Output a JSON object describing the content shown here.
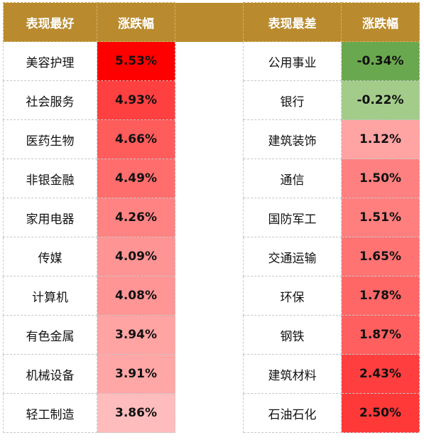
{
  "headers": {
    "best": "表现最好",
    "best_change": "涨跌幅",
    "worst": "表现最差",
    "worst_change": "涨跌幅"
  },
  "best_rows": [
    {
      "name": "美容护理",
      "value": "5.53%",
      "color": "#ff0000"
    },
    {
      "name": "社会服务",
      "value": "4.93%",
      "color": "#ff4040"
    },
    {
      "name": "医药生物",
      "value": "4.66%",
      "color": "#ff5c5c"
    },
    {
      "name": "非银金融",
      "value": "4.49%",
      "color": "#ff6d6d"
    },
    {
      "name": "家用电器",
      "value": "4.26%",
      "color": "#ff8383"
    },
    {
      "name": "传媒",
      "value": "4.09%",
      "color": "#ff9494"
    },
    {
      "name": "计算机",
      "value": "4.08%",
      "color": "#ff9595"
    },
    {
      "name": "有色金属",
      "value": "3.94%",
      "color": "#ffa3a3"
    },
    {
      "name": "机械设备",
      "value": "3.91%",
      "color": "#ffa6a6"
    },
    {
      "name": "轻工制造",
      "value": "3.86%",
      "color": "#ffbcbc"
    }
  ],
  "worst_rows": [
    {
      "name": "公用事业",
      "value": "-0.34%",
      "color": "#6aa84f"
    },
    {
      "name": "银行",
      "value": "-0.22%",
      "color": "#a3cc8a"
    },
    {
      "name": "建筑装饰",
      "value": "1.12%",
      "color": "#ffa3a3"
    },
    {
      "name": "通信",
      "value": "1.50%",
      "color": "#ff8080"
    },
    {
      "name": "国防军工",
      "value": "1.51%",
      "color": "#ff7f7f"
    },
    {
      "name": "交通运输",
      "value": "1.65%",
      "color": "#ff7373"
    },
    {
      "name": "环保",
      "value": "1.78%",
      "color": "#ff6767"
    },
    {
      "name": "钢铁",
      "value": "1.87%",
      "color": "#ff5f5f"
    },
    {
      "name": "建筑材料",
      "value": "2.43%",
      "color": "#ff3f3f"
    },
    {
      "name": "石油石化",
      "value": "2.50%",
      "color": "#ff3838"
    }
  ]
}
